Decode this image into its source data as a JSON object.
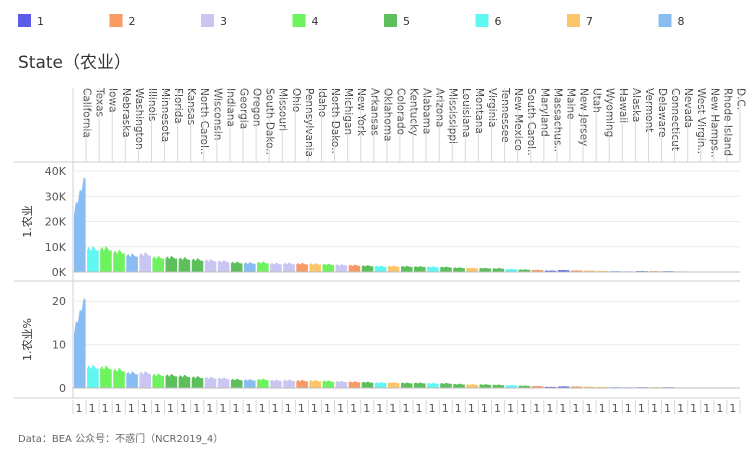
{
  "legend": {
    "items": [
      {
        "label": "1",
        "color": "#5b5be8"
      },
      {
        "label": "2",
        "color": "#f79a64"
      },
      {
        "label": "3",
        "color": "#c9c7f2"
      },
      {
        "label": "4",
        "color": "#6ef25e"
      },
      {
        "label": "5",
        "color": "#5cbf5c"
      },
      {
        "label": "6",
        "color": "#5ef7f2"
      },
      {
        "label": "7",
        "color": "#fcc56a"
      },
      {
        "label": "8",
        "color": "#89bdf2"
      }
    ]
  },
  "footer": {
    "text": "Data：BEA 公众号：不惑门（NCR2019_4）"
  },
  "chart_data": {
    "type": "area",
    "title": "State（农业）",
    "column_label": "1",
    "states": [
      {
        "name": "California",
        "group": "8",
        "value": 38000,
        "pct": 21
      },
      {
        "name": "Texas",
        "group": "6",
        "value": 10500,
        "pct": 5.5
      },
      {
        "name": "Iowa",
        "group": "4",
        "value": 10500,
        "pct": 5.3
      },
      {
        "name": "Nebraska",
        "group": "4",
        "value": 9000,
        "pct": 4.7
      },
      {
        "name": "Washington",
        "group": "8",
        "value": 7500,
        "pct": 3.9
      },
      {
        "name": "Illinois",
        "group": "3",
        "value": 8000,
        "pct": 4.0
      },
      {
        "name": "Minnesota",
        "group": "4",
        "value": 6500,
        "pct": 3.4
      },
      {
        "name": "Florida",
        "group": "5",
        "value": 6500,
        "pct": 3.3
      },
      {
        "name": "Kansas",
        "group": "5",
        "value": 6000,
        "pct": 3.1
      },
      {
        "name": "North Carol..",
        "group": "5",
        "value": 5500,
        "pct": 2.8
      },
      {
        "name": "Wisconsin",
        "group": "3",
        "value": 5200,
        "pct": 2.7
      },
      {
        "name": "Indiana",
        "group": "3",
        "value": 4800,
        "pct": 2.5
      },
      {
        "name": "Georgia",
        "group": "5",
        "value": 4200,
        "pct": 2.2
      },
      {
        "name": "Oregon",
        "group": "8",
        "value": 4000,
        "pct": 2.1
      },
      {
        "name": "South Dako..",
        "group": "4",
        "value": 4200,
        "pct": 2.2
      },
      {
        "name": "Missouri",
        "group": "3",
        "value": 3800,
        "pct": 2.0
      },
      {
        "name": "Ohio",
        "group": "3",
        "value": 3800,
        "pct": 2.0
      },
      {
        "name": "Pennsylvania",
        "group": "2",
        "value": 3700,
        "pct": 1.9
      },
      {
        "name": "Idaho",
        "group": "7",
        "value": 3600,
        "pct": 1.9
      },
      {
        "name": "North Dako..",
        "group": "4",
        "value": 3400,
        "pct": 1.8
      },
      {
        "name": "Michigan",
        "group": "3",
        "value": 3200,
        "pct": 1.7
      },
      {
        "name": "New York",
        "group": "2",
        "value": 3000,
        "pct": 1.6
      },
      {
        "name": "Arkansas",
        "group": "5",
        "value": 2800,
        "pct": 1.5
      },
      {
        "name": "Oklahoma",
        "group": "6",
        "value": 2600,
        "pct": 1.4
      },
      {
        "name": "Colorado",
        "group": "7",
        "value": 2600,
        "pct": 1.4
      },
      {
        "name": "Kentucky",
        "group": "5",
        "value": 2500,
        "pct": 1.3
      },
      {
        "name": "Alabama",
        "group": "5",
        "value": 2400,
        "pct": 1.3
      },
      {
        "name": "Arizona",
        "group": "6",
        "value": 2300,
        "pct": 1.2
      },
      {
        "name": "Mississippi",
        "group": "5",
        "value": 2200,
        "pct": 1.2
      },
      {
        "name": "Louisiana",
        "group": "5",
        "value": 1900,
        "pct": 1.0
      },
      {
        "name": "Montana",
        "group": "7",
        "value": 1800,
        "pct": 0.9
      },
      {
        "name": "Virginia",
        "group": "5",
        "value": 1700,
        "pct": 0.9
      },
      {
        "name": "Tennessee",
        "group": "5",
        "value": 1600,
        "pct": 0.8
      },
      {
        "name": "New Mexico",
        "group": "6",
        "value": 1300,
        "pct": 0.7
      },
      {
        "name": "South Carol..",
        "group": "5",
        "value": 1100,
        "pct": 0.6
      },
      {
        "name": "Maryland",
        "group": "2",
        "value": 900,
        "pct": 0.5
      },
      {
        "name": "Massachus..",
        "group": "1",
        "value": 600,
        "pct": 0.3
      },
      {
        "name": "Maine",
        "group": "1",
        "value": 800,
        "pct": 0.4
      },
      {
        "name": "New Jersey",
        "group": "2",
        "value": 700,
        "pct": 0.4
      },
      {
        "name": "Utah",
        "group": "7",
        "value": 650,
        "pct": 0.35
      },
      {
        "name": "Wyoming",
        "group": "7",
        "value": 500,
        "pct": 0.3
      },
      {
        "name": "Hawaii",
        "group": "8",
        "value": 450,
        "pct": 0.25
      },
      {
        "name": "Alaska",
        "group": "8",
        "value": 300,
        "pct": 0.2
      },
      {
        "name": "Vermont",
        "group": "1",
        "value": 400,
        "pct": 0.2
      },
      {
        "name": "Delaware",
        "group": "2",
        "value": 400,
        "pct": 0.2
      },
      {
        "name": "Connecticut",
        "group": "1",
        "value": 350,
        "pct": 0.2
      },
      {
        "name": "Nevada",
        "group": "7",
        "value": 300,
        "pct": 0.15
      },
      {
        "name": "West Virgin..",
        "group": "5",
        "value": 200,
        "pct": 0.1
      },
      {
        "name": "New Hamps..",
        "group": "1",
        "value": 200,
        "pct": 0.1
      },
      {
        "name": "Rhode Island",
        "group": "1",
        "value": 100,
        "pct": 0.05
      },
      {
        "name": "D.C.",
        "group": "2",
        "value": 20,
        "pct": 0.01
      }
    ],
    "panels": [
      {
        "ylabel": "1.农业",
        "field": "value",
        "ymax": 42000,
        "ticks": [
          {
            "v": 40000,
            "label": "40K"
          },
          {
            "v": 30000,
            "label": "30K"
          },
          {
            "v": 20000,
            "label": "20K"
          },
          {
            "v": 10000,
            "label": "10K"
          },
          {
            "v": 0,
            "label": "0K"
          }
        ]
      },
      {
        "ylabel": "1.农业%",
        "field": "pct",
        "ymax": 23.5,
        "ticks": [
          {
            "v": 20,
            "label": "20"
          },
          {
            "v": 10,
            "label": "10"
          },
          {
            "v": 0,
            "label": "0"
          }
        ]
      }
    ]
  }
}
